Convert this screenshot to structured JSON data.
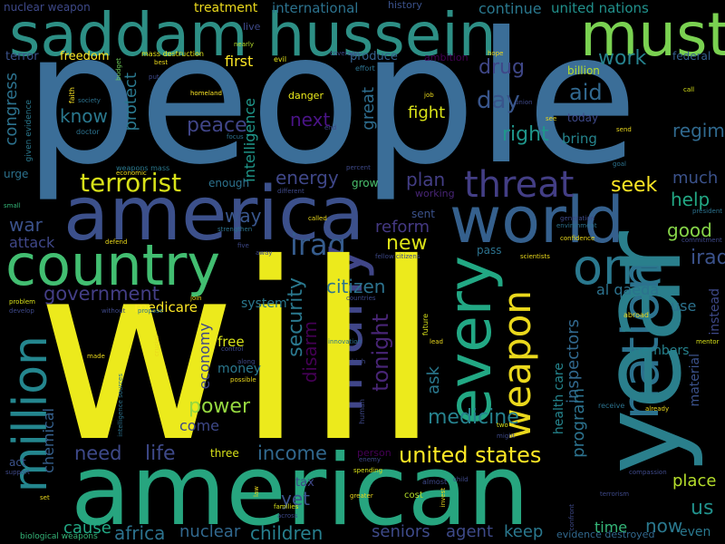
{
  "words": {
    "people": "people",
    "will": "will",
    "american": "american",
    "year": "year",
    "saddam_hussein": "saddam hussein",
    "must": "must",
    "america": "america",
    "world": "world",
    "country": "country",
    "one": "one",
    "every": "every",
    "many": "many",
    "nation": "nation",
    "million": "million",
    "threat": "threat",
    "terrorist": "terrorist",
    "weapon": "weapon",
    "iraq": "iraq",
    "government": "government",
    "united_states": "united states",
    "medicine": "medicine",
    "children": "children",
    "africa": "africa",
    "life": "life",
    "power": "power",
    "income": "income",
    "need": "need",
    "tonight": "tonight",
    "security": "security",
    "citizen": "citizen",
    "disarm": "disarm",
    "drug": "drug",
    "day": "day",
    "work": "work",
    "aid": "aid",
    "right": "right",
    "regime": "regime",
    "fight": "fight",
    "peace": "peace",
    "next": "next",
    "know": "know",
    "energy": "energy",
    "plan": "plan",
    "seek": "seek",
    "help": "help",
    "much": "much",
    "good": "good",
    "way": "way",
    "war": "war",
    "new": "new",
    "reform": "reform",
    "iraqi": "iraqi",
    "nuclear": "nuclear",
    "seniors": "seniors",
    "keep": "keep",
    "now": "now",
    "us": "us",
    "place": "place",
    "yet": "yet",
    "cause": "cause",
    "agent": "agent",
    "time": "time",
    "even": "even",
    "congress": "congress",
    "protect": "protect",
    "great": "great",
    "intelligence": "intelligence",
    "economy": "economy",
    "inspectors": "inspectors",
    "program": "program",
    "health_care": "health care",
    "chemical": "chemical",
    "ask": "ask",
    "al_qaeda": "al qaeda",
    "medicare": "medicare",
    "members": "members",
    "material": "material",
    "instead": "instead",
    "free": "free",
    "money": "money",
    "come": "come",
    "system": "system",
    "use": "use",
    "attack": "attack",
    "first": "first",
    "treatment": "treatment",
    "international": "international",
    "continue": "continue",
    "united_nations": "united nations",
    "nuclear_weapon": "nuclear weapon",
    "freedom": "freedom",
    "terror": "terror",
    "produce": "produce",
    "ambition": "ambition",
    "billion": "billion",
    "federal": "federal",
    "today": "today",
    "bring": "bring",
    "grow": "grow",
    "enough": "enough",
    "danger": "danger",
    "live": "live",
    "urge": "urge",
    "sent": "sent",
    "working": "working",
    "pass": "pass",
    "three": "three",
    "tax": "tax",
    "cost": "cost",
    "act": "act",
    "evidence_destroyed": "evidence destroyed",
    "biological_weapons": "biological weapons",
    "history": "history",
    "given_evidence": "given evidence",
    "faith": "faith",
    "doctor": "doctor",
    "weapons_mass": "weapons mass",
    "mass_destruction": "mass destruction",
    "evil": "evil",
    "nearly": "nearly",
    "coverage": "coverage",
    "effort": "effort",
    "hope": "hope",
    "budget": "budget",
    "best": "best",
    "put": "put",
    "society": "society",
    "homeland": "homeland",
    "small": "small",
    "job": "job",
    "union": "union",
    "send": "send",
    "call": "call",
    "percent": "percent",
    "different": "different",
    "called": "called",
    "defend": "defend",
    "strengthen": "strengthen",
    "five": "five",
    "away": "away",
    "fellow_citizens": "fellow citizens",
    "scientists": "scientists",
    "generation": "generation",
    "environment": "environment",
    "confidence": "confidence",
    "president": "president",
    "problem": "problem",
    "develop": "develop",
    "without": "without",
    "propose": "propose",
    "join": "join",
    "countries": "countries",
    "innovation": "innovation",
    "high": "high",
    "made": "made",
    "control": "control",
    "along": "along",
    "possible": "possible",
    "lead": "lead",
    "future": "future",
    "mentor": "mentor",
    "abroad": "abroad",
    "receive": "receive",
    "already": "already",
    "compassion": "compassion",
    "human": "human",
    "person": "person",
    "enemy": "enemy",
    "spending": "spending",
    "greater": "greater",
    "almost": "almost",
    "child": "child",
    "two": "two",
    "might": "might",
    "invest": "invest",
    "terrorism": "terrorism",
    "across": "across",
    "families": "families",
    "support": "support",
    "set": "set",
    "law": "law",
    "intelligence_sources": "intelligence sources",
    "crucial": "crucial",
    "commitment": "commitment",
    "goal": "goal",
    "see": "see",
    "focus": "focus",
    "end": "end",
    "economic": "economic",
    "confront": "confront"
  },
  "colors": {
    "background": "#000000",
    "yellow": "#ecea1c",
    "green": "#27a57f",
    "teal": "#2a788e",
    "blue": "#3b6e98",
    "purple": "#440154"
  }
}
